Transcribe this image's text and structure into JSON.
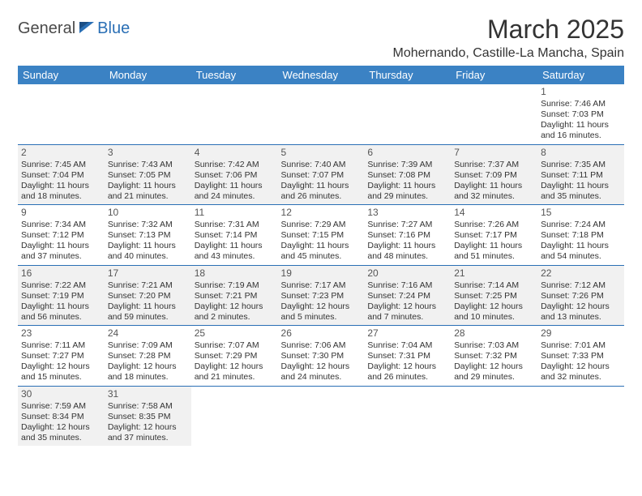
{
  "logo": {
    "general": "General",
    "blue": "Blue"
  },
  "title": "March 2025",
  "location": "Mohernando, Castille-La Mancha, Spain",
  "colors": {
    "header_bg": "#3b82c4",
    "header_text": "#ffffff",
    "row_sep": "#2a6fb5",
    "shade": "#f1f1f1",
    "logo_blue": "#2a6fb5",
    "logo_gray": "#4a4a4a"
  },
  "daynames": [
    "Sunday",
    "Monday",
    "Tuesday",
    "Wednesday",
    "Thursday",
    "Friday",
    "Saturday"
  ],
  "weeks": [
    [
      null,
      null,
      null,
      null,
      null,
      null,
      {
        "n": "1",
        "sr": "Sunrise: 7:46 AM",
        "ss": "Sunset: 7:03 PM",
        "d1": "Daylight: 11 hours",
        "d2": "and 16 minutes."
      }
    ],
    [
      {
        "n": "2",
        "sr": "Sunrise: 7:45 AM",
        "ss": "Sunset: 7:04 PM",
        "d1": "Daylight: 11 hours",
        "d2": "and 18 minutes."
      },
      {
        "n": "3",
        "sr": "Sunrise: 7:43 AM",
        "ss": "Sunset: 7:05 PM",
        "d1": "Daylight: 11 hours",
        "d2": "and 21 minutes."
      },
      {
        "n": "4",
        "sr": "Sunrise: 7:42 AM",
        "ss": "Sunset: 7:06 PM",
        "d1": "Daylight: 11 hours",
        "d2": "and 24 minutes."
      },
      {
        "n": "5",
        "sr": "Sunrise: 7:40 AM",
        "ss": "Sunset: 7:07 PM",
        "d1": "Daylight: 11 hours",
        "d2": "and 26 minutes."
      },
      {
        "n": "6",
        "sr": "Sunrise: 7:39 AM",
        "ss": "Sunset: 7:08 PM",
        "d1": "Daylight: 11 hours",
        "d2": "and 29 minutes."
      },
      {
        "n": "7",
        "sr": "Sunrise: 7:37 AM",
        "ss": "Sunset: 7:09 PM",
        "d1": "Daylight: 11 hours",
        "d2": "and 32 minutes."
      },
      {
        "n": "8",
        "sr": "Sunrise: 7:35 AM",
        "ss": "Sunset: 7:11 PM",
        "d1": "Daylight: 11 hours",
        "d2": "and 35 minutes."
      }
    ],
    [
      {
        "n": "9",
        "sr": "Sunrise: 7:34 AM",
        "ss": "Sunset: 7:12 PM",
        "d1": "Daylight: 11 hours",
        "d2": "and 37 minutes."
      },
      {
        "n": "10",
        "sr": "Sunrise: 7:32 AM",
        "ss": "Sunset: 7:13 PM",
        "d1": "Daylight: 11 hours",
        "d2": "and 40 minutes."
      },
      {
        "n": "11",
        "sr": "Sunrise: 7:31 AM",
        "ss": "Sunset: 7:14 PM",
        "d1": "Daylight: 11 hours",
        "d2": "and 43 minutes."
      },
      {
        "n": "12",
        "sr": "Sunrise: 7:29 AM",
        "ss": "Sunset: 7:15 PM",
        "d1": "Daylight: 11 hours",
        "d2": "and 45 minutes."
      },
      {
        "n": "13",
        "sr": "Sunrise: 7:27 AM",
        "ss": "Sunset: 7:16 PM",
        "d1": "Daylight: 11 hours",
        "d2": "and 48 minutes."
      },
      {
        "n": "14",
        "sr": "Sunrise: 7:26 AM",
        "ss": "Sunset: 7:17 PM",
        "d1": "Daylight: 11 hours",
        "d2": "and 51 minutes."
      },
      {
        "n": "15",
        "sr": "Sunrise: 7:24 AM",
        "ss": "Sunset: 7:18 PM",
        "d1": "Daylight: 11 hours",
        "d2": "and 54 minutes."
      }
    ],
    [
      {
        "n": "16",
        "sr": "Sunrise: 7:22 AM",
        "ss": "Sunset: 7:19 PM",
        "d1": "Daylight: 11 hours",
        "d2": "and 56 minutes."
      },
      {
        "n": "17",
        "sr": "Sunrise: 7:21 AM",
        "ss": "Sunset: 7:20 PM",
        "d1": "Daylight: 11 hours",
        "d2": "and 59 minutes."
      },
      {
        "n": "18",
        "sr": "Sunrise: 7:19 AM",
        "ss": "Sunset: 7:21 PM",
        "d1": "Daylight: 12 hours",
        "d2": "and 2 minutes."
      },
      {
        "n": "19",
        "sr": "Sunrise: 7:17 AM",
        "ss": "Sunset: 7:23 PM",
        "d1": "Daylight: 12 hours",
        "d2": "and 5 minutes."
      },
      {
        "n": "20",
        "sr": "Sunrise: 7:16 AM",
        "ss": "Sunset: 7:24 PM",
        "d1": "Daylight: 12 hours",
        "d2": "and 7 minutes."
      },
      {
        "n": "21",
        "sr": "Sunrise: 7:14 AM",
        "ss": "Sunset: 7:25 PM",
        "d1": "Daylight: 12 hours",
        "d2": "and 10 minutes."
      },
      {
        "n": "22",
        "sr": "Sunrise: 7:12 AM",
        "ss": "Sunset: 7:26 PM",
        "d1": "Daylight: 12 hours",
        "d2": "and 13 minutes."
      }
    ],
    [
      {
        "n": "23",
        "sr": "Sunrise: 7:11 AM",
        "ss": "Sunset: 7:27 PM",
        "d1": "Daylight: 12 hours",
        "d2": "and 15 minutes."
      },
      {
        "n": "24",
        "sr": "Sunrise: 7:09 AM",
        "ss": "Sunset: 7:28 PM",
        "d1": "Daylight: 12 hours",
        "d2": "and 18 minutes."
      },
      {
        "n": "25",
        "sr": "Sunrise: 7:07 AM",
        "ss": "Sunset: 7:29 PM",
        "d1": "Daylight: 12 hours",
        "d2": "and 21 minutes."
      },
      {
        "n": "26",
        "sr": "Sunrise: 7:06 AM",
        "ss": "Sunset: 7:30 PM",
        "d1": "Daylight: 12 hours",
        "d2": "and 24 minutes."
      },
      {
        "n": "27",
        "sr": "Sunrise: 7:04 AM",
        "ss": "Sunset: 7:31 PM",
        "d1": "Daylight: 12 hours",
        "d2": "and 26 minutes."
      },
      {
        "n": "28",
        "sr": "Sunrise: 7:03 AM",
        "ss": "Sunset: 7:32 PM",
        "d1": "Daylight: 12 hours",
        "d2": "and 29 minutes."
      },
      {
        "n": "29",
        "sr": "Sunrise: 7:01 AM",
        "ss": "Sunset: 7:33 PM",
        "d1": "Daylight: 12 hours",
        "d2": "and 32 minutes."
      }
    ],
    [
      {
        "n": "30",
        "sr": "Sunrise: 7:59 AM",
        "ss": "Sunset: 8:34 PM",
        "d1": "Daylight: 12 hours",
        "d2": "and 35 minutes."
      },
      {
        "n": "31",
        "sr": "Sunrise: 7:58 AM",
        "ss": "Sunset: 8:35 PM",
        "d1": "Daylight: 12 hours",
        "d2": "and 37 minutes."
      },
      null,
      null,
      null,
      null,
      null
    ]
  ],
  "shaded_rows": [
    1,
    3,
    5
  ]
}
